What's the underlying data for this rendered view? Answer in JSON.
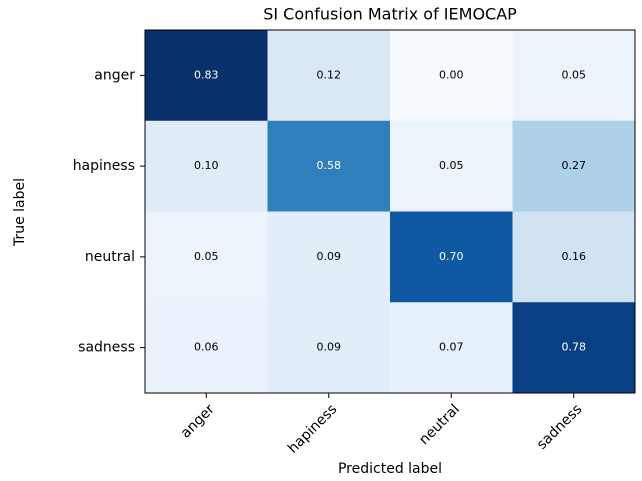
{
  "chart_data": {
    "type": "heatmap",
    "title": "SI Confusion Matrix of IEMOCAP",
    "xlabel": "Predicted label",
    "ylabel": "True label",
    "x_categories": [
      "anger",
      "hapiness",
      "neutral",
      "sadness"
    ],
    "y_categories": [
      "anger",
      "hapiness",
      "neutral",
      "sadness"
    ],
    "values": [
      [
        0.83,
        0.12,
        0.0,
        0.05
      ],
      [
        0.1,
        0.58,
        0.05,
        0.27
      ],
      [
        0.05,
        0.09,
        0.7,
        0.16
      ],
      [
        0.06,
        0.09,
        0.07,
        0.78
      ]
    ],
    "value_labels": [
      [
        "0.83",
        "0.12",
        "0.00",
        "0.05"
      ],
      [
        "0.10",
        "0.58",
        "0.05",
        "0.27"
      ],
      [
        "0.05",
        "0.09",
        "0.70",
        "0.16"
      ],
      [
        "0.06",
        "0.09",
        "0.07",
        "0.78"
      ]
    ],
    "colormap": "Blues"
  }
}
